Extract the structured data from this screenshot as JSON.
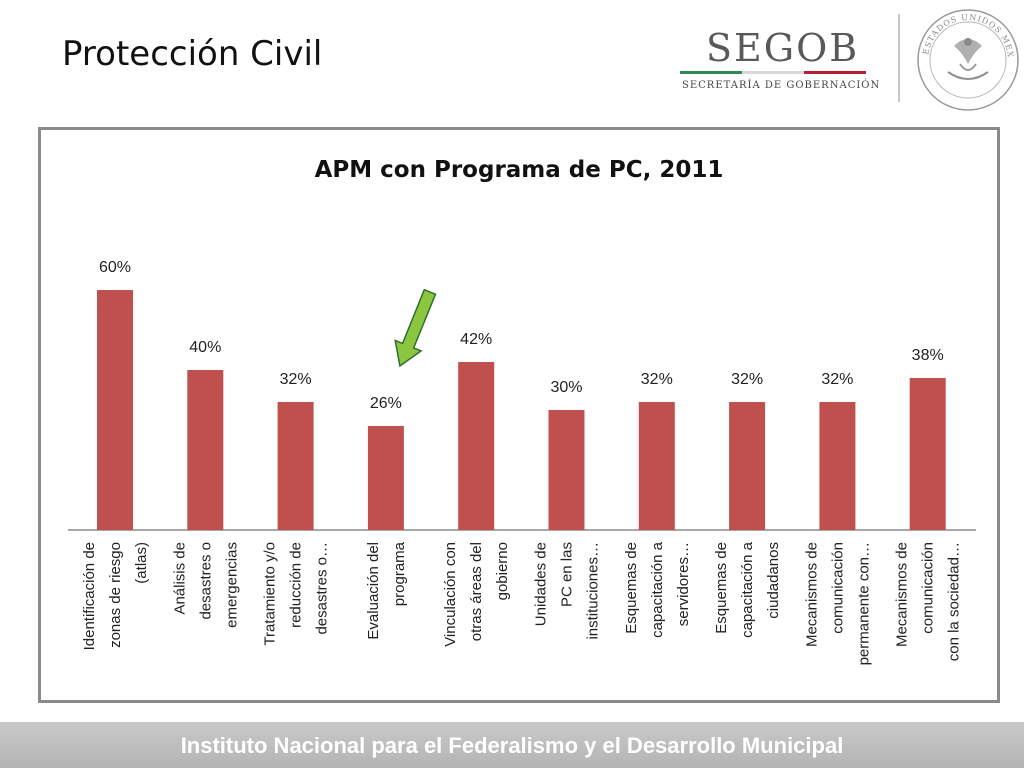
{
  "slide": {
    "title": "Protección Civil",
    "footer": "Instituto Nacional para el Federalismo y el Desarrollo Municipal"
  },
  "logo": {
    "wordmark": "SEGOB",
    "subtitle": "SECRETARÍA DE GOBERNACIÓN",
    "seal_text": "ESTADOS UNIDOS MEXICANOS"
  },
  "colors": {
    "bar": "#c0504d",
    "arrow": "#8cc63f",
    "frame": "#8a8a8a",
    "footer": "#bdbdbd"
  },
  "chart_data": {
    "type": "bar",
    "title": "APM con Programa de PC, 2011",
    "categories": [
      "Identificación de zonas de riesgo (atlas)",
      "Análisis de desastres o emergencias",
      "Tratamiento y/o reducción de desastres o…",
      "Evaluación del programa",
      "Vinculación con otras áreas del gobierno",
      "Unidades de PC en las instituciones…",
      "Esquemas de capacitación a servidores…",
      "Esquemas de capacitación a ciudadanos",
      "Mecanismos de comunicación permanente con…",
      "Mecanismos de comunicación con la sociedad…"
    ],
    "category_lines": [
      [
        "Identificación de",
        "zonas de riesgo",
        "(atlas)"
      ],
      [
        "Análisis de",
        "desastres o",
        "emergencias"
      ],
      [
        "Tratamiento y/o",
        "reducción de",
        "desastres o…"
      ],
      [
        "Evaluación del",
        "programa"
      ],
      [
        "Vinculación con",
        "otras áreas del",
        "gobierno"
      ],
      [
        "Unidades de",
        "PC en las",
        "instituciones…"
      ],
      [
        "Esquemas de",
        "capacitación a",
        "servidores…"
      ],
      [
        "Esquemas de",
        "capacitación a",
        "ciudadanos"
      ],
      [
        "Mecanismos de",
        "comunicación",
        "permanente con…"
      ],
      [
        "Mecanismos de",
        "comunicación",
        "con la sociedad…"
      ]
    ],
    "values": [
      60,
      40,
      32,
      26,
      42,
      30,
      32,
      32,
      32,
      38
    ],
    "data_labels": [
      "60%",
      "40%",
      "32%",
      "26%",
      "42%",
      "30%",
      "32%",
      "32%",
      "32%",
      "38%"
    ],
    "ylim": [
      0,
      70
    ],
    "grid": false,
    "legend": "none",
    "annotation": {
      "type": "arrow",
      "target_category_index": 3
    }
  }
}
